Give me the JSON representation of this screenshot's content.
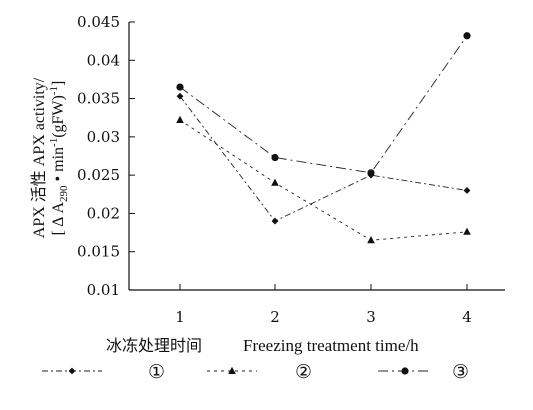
{
  "chart_data": {
    "type": "line",
    "x": [
      1,
      2,
      3,
      4
    ],
    "xticks": [
      "1",
      "2",
      "3",
      "4"
    ],
    "ylim": [
      0.01,
      0.045
    ],
    "yticks": [
      "0.01",
      "0.015",
      "0.02",
      "0.025",
      "0.03",
      "0.035",
      "0.04",
      "0.045"
    ],
    "ylabel_line1": "APX 活性  APX activity/",
    "ylabel_line2_a": "[ Δ A",
    "ylabel_line2_sub": "290",
    "ylabel_line2_b": " • min",
    "ylabel_line2_sup1": "-1",
    "ylabel_line2_c": "(gFW)",
    "ylabel_line2_sup2": "-1",
    "ylabel_line2_d": "]",
    "xlabel_zh": "冰冻处理时间",
    "xlabel_en": "Freezing treatment time/h",
    "grid": false,
    "legend_position": "bottom",
    "series": [
      {
        "name": "①",
        "marker": "diamond",
        "dash": "6 3 2 3",
        "values": [
          0.0353,
          0.019,
          0.025,
          0.023
        ]
      },
      {
        "name": "②",
        "marker": "triangle",
        "dash": "3 4",
        "values": [
          0.0322,
          0.024,
          0.0165,
          0.0176
        ]
      },
      {
        "name": "③",
        "marker": "circle",
        "dash": "10 4 2 4",
        "values": [
          0.0365,
          0.0273,
          0.0253,
          0.0432
        ]
      }
    ]
  }
}
